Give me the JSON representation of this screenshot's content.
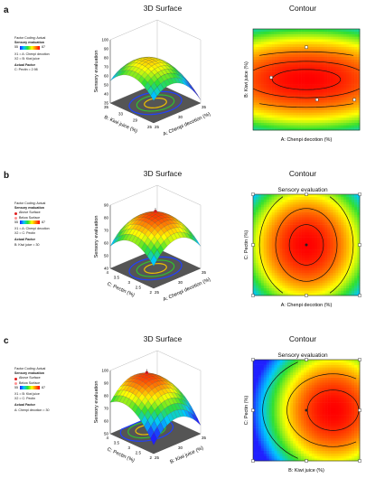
{
  "panels": [
    {
      "label": "a",
      "title_3d": "3D Surface",
      "title_contour": "Contour",
      "contour_subtitle": "",
      "side": {
        "coding": "Factor Coding: Actual",
        "response": "Sensory evaluation",
        "design_points": [],
        "range_lo": "55",
        "range_hi": "87",
        "x1": "X1 = A: Chenpi decotion",
        "x2": "X2 = B: Kiwi juice",
        "actual_factor": "Actual Factor",
        "actual_value": "C: Pectin = 2.98"
      },
      "zlabel": "Sensory evaluation",
      "xlabel3d": "A: Chenpi decotion (%)",
      "ylabel3d": "B: Kiwi juice (%)",
      "xlabel2d": "A: Chenpi decotion  (%)",
      "ylabel2d": "B: Kiwi juice  (%)",
      "zticks": [
        "35",
        "40",
        "50",
        "60",
        "70",
        "80",
        "90",
        "100"
      ],
      "xticks3d": [
        "25",
        "30",
        "35"
      ],
      "yticks3d": [
        "25",
        "29",
        "33",
        "35"
      ],
      "contour_levels": [
        "60",
        "70",
        "80"
      ]
    },
    {
      "label": "b",
      "title_3d": "3D Surface",
      "title_contour": "Contour",
      "contour_subtitle": "Sensory evaluation",
      "side": {
        "coding": "Factor Coding: Actual",
        "response": "Sensory evaluation",
        "design_points": [
          "Above Surface",
          "Below Surface"
        ],
        "range_lo": "55",
        "range_hi": "87",
        "x1": "X1 = A: Chenpi decotion",
        "x2": "X2 = C: Pectin",
        "actual_factor": "Actual Factor",
        "actual_value": "B: Kiwi juice = 30"
      },
      "zlabel": "Sensory evaluation",
      "xlabel3d": "A: Chenpi decotion (%)",
      "ylabel3d": "C: Pectin (%)",
      "xlabel2d": "A: Chenpi decotion  (%)",
      "ylabel2d": "C: Pectin  (%)",
      "zticks": [
        "40",
        "50",
        "60",
        "70",
        "80",
        "90"
      ],
      "xticks3d": [
        "25",
        "30",
        "35"
      ],
      "yticks3d": [
        "2",
        "2.5",
        "3",
        "3.5",
        "4"
      ],
      "contour_levels": [
        "60",
        "70",
        "80"
      ]
    },
    {
      "label": "c",
      "title_3d": "3D Surface",
      "title_contour": "Contour",
      "contour_subtitle": "Sensory evaluation",
      "side": {
        "coding": "Factor Coding: Actual",
        "response": "Sensory evaluation",
        "design_points": [
          "Above Surface",
          "Below Surface"
        ],
        "range_lo": "55",
        "range_hi": "87",
        "x1": "X1 = B: Kiwi juice",
        "x2": "X2 = C: Pectin",
        "actual_factor": "Actual Factor",
        "actual_value": "A: Chenpi decotion = 30"
      },
      "zlabel": "Sensory evaluation",
      "xlabel3d": "B: Kiwi juice (%)",
      "ylabel3d": "C: Pectin (%)",
      "xlabel2d": "B: Kiwi juice  (%)",
      "ylabel2d": "C: Pectin  (%)",
      "zticks": [
        "50",
        "60",
        "70",
        "80",
        "90",
        "100"
      ],
      "xticks3d": [
        "25",
        "30",
        "35"
      ],
      "yticks3d": [
        "2",
        "2.5",
        "3",
        "3.5",
        "4"
      ],
      "contour_levels": [
        "60",
        "70",
        "80"
      ]
    }
  ],
  "chart_data": [
    {
      "type": "heatmap",
      "title": "3D Surface",
      "xlabel": "A: Chenpi decotion (%)",
      "ylabel": "B: Kiwi juice (%)",
      "zlabel": "Sensory evaluation",
      "xlim": [
        25,
        35
      ],
      "ylim": [
        25,
        35
      ],
      "zlim": [
        35,
        100
      ],
      "optimum": {
        "x": 30,
        "y": 30,
        "z": 87
      }
    },
    {
      "type": "heatmap",
      "title": "3D Surface",
      "xlabel": "A: Chenpi decotion (%)",
      "ylabel": "C: Pectin (%)",
      "zlabel": "Sensory evaluation",
      "xlim": [
        25,
        35
      ],
      "ylim": [
        2,
        4
      ],
      "zlim": [
        40,
        90
      ],
      "optimum": {
        "x": 30,
        "y": 3,
        "z": 87
      }
    },
    {
      "type": "heatmap",
      "title": "3D Surface",
      "xlabel": "B: Kiwi juice (%)",
      "ylabel": "C: Pectin (%)",
      "zlabel": "Sensory evaluation",
      "xlim": [
        25,
        35
      ],
      "ylim": [
        2,
        4
      ],
      "zlim": [
        50,
        100
      ],
      "optimum": {
        "x": 32,
        "y": 3,
        "z": 87
      }
    }
  ],
  "colors": {
    "low": "#2020ff",
    "mid": "#30e030",
    "high": "#ff0000",
    "above": "#e02020",
    "below": "#ff9090",
    "floor": "#555555"
  }
}
